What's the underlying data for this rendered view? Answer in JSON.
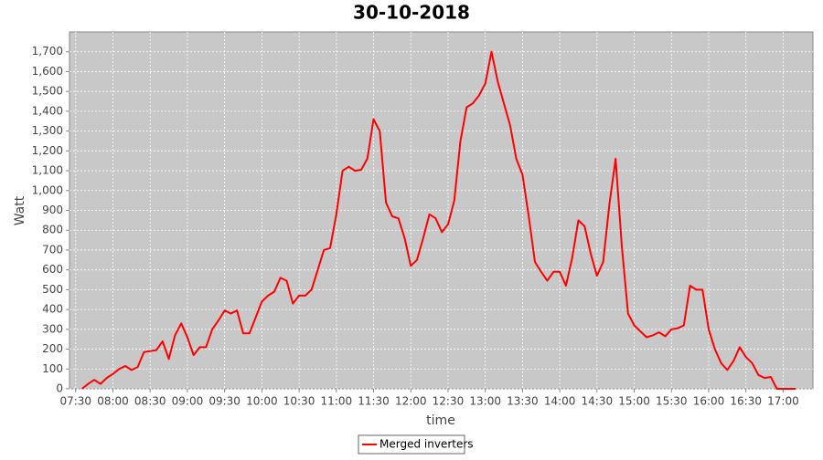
{
  "chart_data": {
    "type": "line",
    "title": "30-10-2018",
    "x_label": "time",
    "y_label": "Watt",
    "x": [
      "07:35",
      "07:40",
      "07:45",
      "07:50",
      "07:55",
      "08:00",
      "08:05",
      "08:10",
      "08:15",
      "08:20",
      "08:25",
      "08:30",
      "08:35",
      "08:40",
      "08:45",
      "08:50",
      "08:55",
      "09:00",
      "09:05",
      "09:10",
      "09:15",
      "09:20",
      "09:25",
      "09:30",
      "09:35",
      "09:40",
      "09:45",
      "09:50",
      "09:55",
      "10:00",
      "10:05",
      "10:10",
      "10:15",
      "10:20",
      "10:25",
      "10:30",
      "10:35",
      "10:40",
      "10:45",
      "10:50",
      "10:55",
      "11:00",
      "11:05",
      "11:10",
      "11:15",
      "11:20",
      "11:25",
      "11:30",
      "11:35",
      "11:40",
      "11:45",
      "11:50",
      "11:55",
      "12:00",
      "12:05",
      "12:10",
      "12:15",
      "12:20",
      "12:25",
      "12:30",
      "12:35",
      "12:40",
      "12:45",
      "12:50",
      "12:55",
      "13:00",
      "13:05",
      "13:10",
      "13:15",
      "13:20",
      "13:25",
      "13:30",
      "13:35",
      "13:40",
      "13:45",
      "13:50",
      "13:55",
      "14:00",
      "14:05",
      "14:10",
      "14:15",
      "14:20",
      "14:25",
      "14:30",
      "14:35",
      "14:40",
      "14:45",
      "14:50",
      "14:55",
      "15:00",
      "15:05",
      "15:10",
      "15:15",
      "15:20",
      "15:25",
      "15:30",
      "15:35",
      "15:40",
      "15:45",
      "15:50",
      "15:55",
      "16:00",
      "16:05",
      "16:10",
      "16:15",
      "16:20",
      "16:25",
      "16:30",
      "16:35",
      "16:40",
      "16:45",
      "16:50",
      "16:55",
      "17:00",
      "17:05",
      "17:10"
    ],
    "series": [
      {
        "name": "Merged inverters",
        "color": "#ff0000",
        "values": [
          0,
          25,
          45,
          25,
          55,
          75,
          100,
          115,
          95,
          110,
          185,
          190,
          195,
          240,
          150,
          270,
          330,
          260,
          170,
          210,
          210,
          300,
          345,
          395,
          380,
          395,
          280,
          280,
          360,
          440,
          470,
          490,
          560,
          545,
          430,
          470,
          470,
          500,
          600,
          700,
          710,
          880,
          1100,
          1120,
          1100,
          1105,
          1160,
          1360,
          1300,
          940,
          870,
          860,
          760,
          620,
          650,
          760,
          880,
          860,
          790,
          830,
          950,
          1250,
          1420,
          1440,
          1480,
          1540,
          1700,
          1550,
          1440,
          1330,
          1160,
          1080,
          870,
          640,
          590,
          545,
          590,
          590,
          520,
          660,
          850,
          820,
          680,
          570,
          640,
          930,
          1160,
          720,
          380,
          320,
          290,
          260,
          270,
          285,
          265,
          300,
          305,
          320,
          520,
          500,
          500,
          300,
          200,
          130,
          95,
          140,
          210,
          160,
          130,
          70,
          55,
          60,
          0,
          0,
          0,
          0
        ]
      }
    ],
    "xlim": [
      "07:25",
      "17:24"
    ],
    "xticks": [
      "07:30",
      "08:00",
      "08:30",
      "09:00",
      "09:30",
      "10:00",
      "10:30",
      "11:00",
      "11:30",
      "12:00",
      "12:30",
      "13:00",
      "13:30",
      "14:00",
      "14:30",
      "15:00",
      "15:30",
      "16:00",
      "16:30",
      "17:00"
    ],
    "ylim": [
      0,
      1800
    ],
    "yticks": [
      0,
      100,
      200,
      300,
      400,
      500,
      600,
      700,
      800,
      900,
      {
        "value": 1000,
        "label": "1,000"
      },
      {
        "value": 1100,
        "label": "1,100"
      },
      {
        "value": 1200,
        "label": "1,200"
      },
      {
        "value": 1300,
        "label": "1,300"
      },
      {
        "value": 1400,
        "label": "1,400"
      },
      {
        "value": 1500,
        "label": "1,500"
      },
      {
        "value": 1600,
        "label": "1,600"
      },
      {
        "value": 1700,
        "label": "1,700"
      }
    ],
    "grid": true,
    "legend": "bottom",
    "background": "#c8c8c8"
  }
}
